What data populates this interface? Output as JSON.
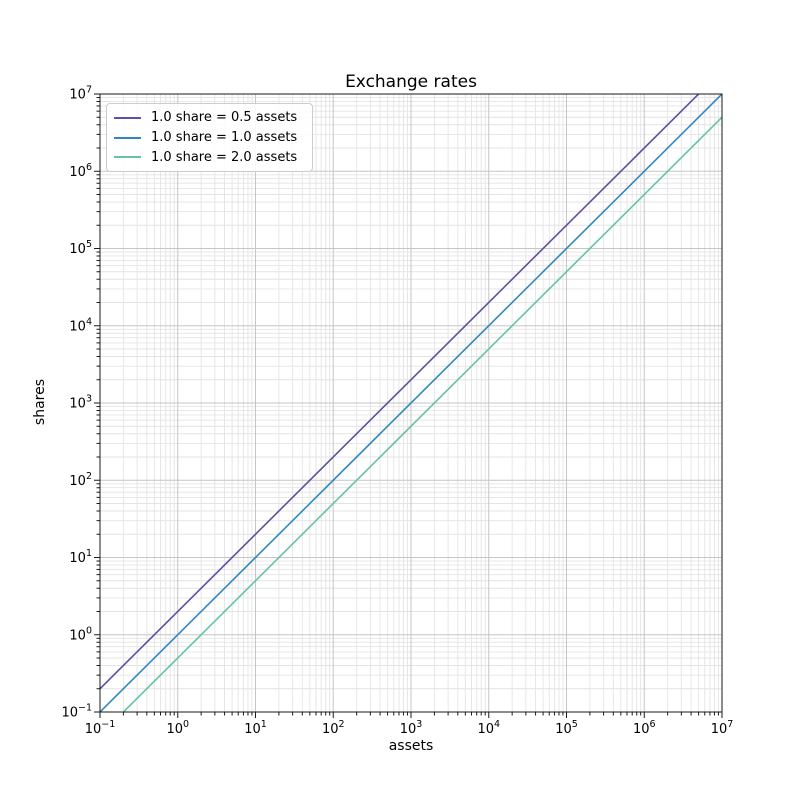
{
  "chart_data": {
    "type": "line",
    "title": "Exchange rates",
    "xlabel": "assets",
    "ylabel": "shares",
    "xscale": "log",
    "yscale": "log",
    "xlim": [
      0.1,
      10000000
    ],
    "ylim": [
      0.1,
      10000000
    ],
    "grid": "both major and minor gridlines, light gray, solid",
    "legend_position": "upper left",
    "x_tick_exponents": [
      -1,
      0,
      1,
      2,
      3,
      4,
      5,
      6,
      7
    ],
    "y_tick_exponents": [
      -1,
      0,
      1,
      2,
      3,
      4,
      5,
      6,
      7
    ],
    "series": [
      {
        "name": "1.0 share = 0.5 assets",
        "color": "#5e4fa2",
        "assets_per_share": 0.5,
        "shares_per_asset": 2.0,
        "x": [
          0.1,
          10000000
        ],
        "y": [
          0.2,
          20000000
        ]
      },
      {
        "name": "1.0 share = 1.0 assets",
        "color": "#3288bd",
        "assets_per_share": 1.0,
        "shares_per_asset": 1.0,
        "x": [
          0.1,
          10000000
        ],
        "y": [
          0.1,
          10000000
        ]
      },
      {
        "name": "1.0 share = 2.0 assets",
        "color": "#66c2a5",
        "assets_per_share": 2.0,
        "shares_per_asset": 0.5,
        "x": [
          0.1,
          10000000
        ],
        "y": [
          0.05,
          5000000
        ]
      }
    ],
    "colors": {
      "major_grid": "#c6c6c6",
      "minor_grid": "#e4e4e4",
      "spine": "#1a1a1a",
      "tick": "#1a1a1a",
      "text": "#000000",
      "background": "#ffffff"
    }
  }
}
